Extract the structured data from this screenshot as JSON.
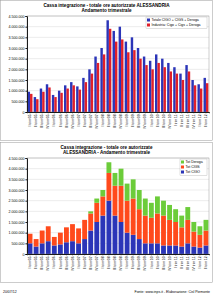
{
  "chart_data": [
    {
      "type": "bar",
      "title": "Cassa integrazione - totale ore autorizzate ALESSANDRIA",
      "subtitle": "Andamento trimestrale",
      "categories": [
        "I trim 05",
        "II trim 05",
        "III trim 05",
        "IV trim 05",
        "I trim 06",
        "II trim 06",
        "III trim 06",
        "IV trim 06",
        "I trim 07",
        "II trim 07",
        "III trim 07",
        "IV trim 07",
        "I trim 08",
        "II trim 08",
        "III trim 08",
        "IV trim 08",
        "I trim 09",
        "II trim 09",
        "III trim 09",
        "IV trim 09",
        "I trim 10",
        "II trim 10",
        "III trim 10",
        "IV trim 10",
        "I trim 11",
        "II trim 11",
        "III trim 11",
        "IV trim 11",
        "I trim 12",
        "II trim 12"
      ],
      "series": [
        {
          "name": "Totale CIGO + CIGS + Deroga",
          "color": "#2b35b8",
          "values": [
            950000,
            700000,
            1100000,
            1300000,
            800000,
            1000000,
            1250000,
            1400000,
            1200000,
            1600000,
            2000000,
            2600000,
            3000000,
            4300000,
            3800000,
            4000000,
            3300000,
            3500000,
            3000000,
            2600000,
            2400000,
            2700000,
            2500000,
            2300000,
            2100000,
            1800000,
            2200000,
            1500000,
            1300000,
            1600000
          ]
        },
        {
          "name": "Industria: Cigo + Cigs + Deroga",
          "color": "#e0202a",
          "values": [
            850000,
            600000,
            950000,
            1150000,
            700000,
            900000,
            1100000,
            1250000,
            1050000,
            1400000,
            1800000,
            2300000,
            2700000,
            3900000,
            3300000,
            3400000,
            2800000,
            2900000,
            2500000,
            2200000,
            2000000,
            2300000,
            2100000,
            1900000,
            1800000,
            1500000,
            1900000,
            1250000,
            1100000,
            1350000
          ]
        }
      ],
      "ylim": [
        0,
        4500000
      ],
      "yticks": [
        0,
        {
          "value": 500000,
          "label": "500.000"
        },
        {
          "value": 1000000,
          "label": "1.000.000"
        },
        {
          "value": 1500000,
          "label": "1.500.000"
        },
        {
          "value": 2000000,
          "label": "2.000.000"
        },
        {
          "value": 2500000,
          "label": "2.500.000"
        },
        {
          "value": 3000000,
          "label": "3.000.000"
        },
        {
          "value": 3500000,
          "label": "3.500.000"
        },
        {
          "value": 4000000,
          "label": "4.000.000"
        },
        {
          "value": 4500000,
          "label": "4.500.000"
        }
      ],
      "grid": true,
      "legend": "upper right"
    },
    {
      "type": "bar",
      "title": "Cassa integrazione - totale ore autorizzate",
      "subtitle": "ALESSANDRIA - Andamento trimestrale",
      "categories": [
        "I trim 05",
        "II trim 05",
        "III trim 05",
        "IV trim 05",
        "I trim 06",
        "II trim 06",
        "III trim 06",
        "IV trim 06",
        "I trim 07",
        "II trim 07",
        "III trim 07",
        "IV trim 07",
        "I trim 08",
        "II trim 08",
        "III trim 08",
        "IV trim 08",
        "I trim 09",
        "II trim 09",
        "III trim 09",
        "IV trim 09",
        "I trim 10",
        "II trim 10",
        "III trim 10",
        "IV trim 10",
        "I trim 11",
        "II trim 11",
        "III trim 11",
        "IV trim 11",
        "I trim 12",
        "II trim 12"
      ],
      "series": [
        {
          "name": "Tot CIGO",
          "color": "#2b35b8",
          "values": [
            500000,
            350000,
            500000,
            600000,
            400000,
            450000,
            550000,
            600000,
            500000,
            700000,
            1100000,
            1500000,
            1800000,
            2500000,
            1800000,
            1500000,
            1000000,
            900000,
            700000,
            500000,
            500000,
            500000,
            400000,
            400000,
            400000,
            350000,
            500000,
            350000,
            300000,
            400000
          ]
        },
        {
          "name": "Tot CIGS",
          "color": "#ff4a1c",
          "values": [
            450000,
            350000,
            600000,
            700000,
            400000,
            550000,
            700000,
            800000,
            700000,
            900000,
            800000,
            900000,
            900000,
            1300000,
            1400000,
            1700000,
            1500000,
            1700000,
            1400000,
            1300000,
            1200000,
            1400000,
            1400000,
            1200000,
            1100000,
            900000,
            1100000,
            700000,
            600000,
            700000
          ]
        },
        {
          "name": "Tot Deroga",
          "color": "#6ccc3a",
          "values": [
            0,
            0,
            0,
            0,
            0,
            0,
            0,
            0,
            0,
            0,
            100000,
            200000,
            300000,
            500000,
            600000,
            800000,
            800000,
            900000,
            900000,
            800000,
            700000,
            800000,
            700000,
            700000,
            600000,
            550000,
            600000,
            450000,
            400000,
            500000
          ]
        }
      ],
      "stacked": true,
      "ylim": [
        0,
        4500000
      ],
      "yticks": [
        0,
        {
          "value": 500000,
          "label": "500.000"
        },
        {
          "value": 1000000,
          "label": "1.000.000"
        },
        {
          "value": 1500000,
          "label": "1.500.000"
        },
        {
          "value": 2000000,
          "label": "2.000.000"
        },
        {
          "value": 2500000,
          "label": "2.500.000"
        },
        {
          "value": 3000000,
          "label": "3.000.000"
        },
        {
          "value": 3500000,
          "label": "3.500.000"
        },
        {
          "value": 4000000,
          "label": "4.000.000"
        },
        {
          "value": 4500000,
          "label": "4.500.000"
        }
      ],
      "grid": true,
      "legend": "upper right"
    }
  ],
  "footer": {
    "date": "20/07/12",
    "source": "Fonte: www.inps.it - Elaborazione: Cisl Piemonte"
  }
}
